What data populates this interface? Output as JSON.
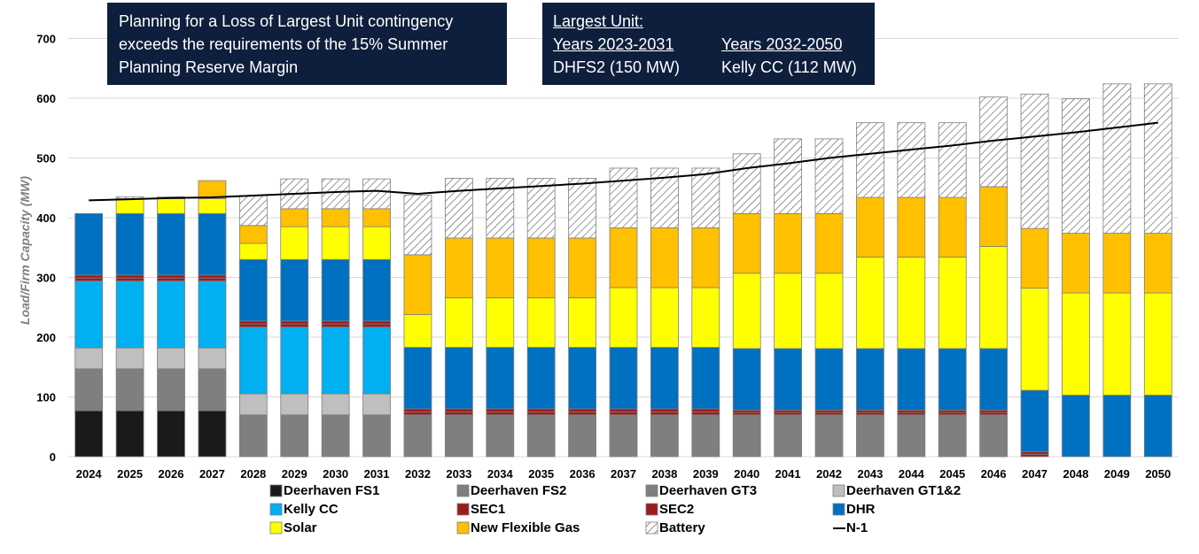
{
  "notes": {
    "left_lines": [
      "Planning for a Loss of Largest Unit contingency",
      "exceeds the requirements of the 15% Summer",
      "Planning Reserve Margin"
    ],
    "right": {
      "title": "Largest Unit:",
      "col1_header": "Years 2023-2031",
      "col2_header": "Years 2032-2050",
      "col1_value": "DHFS2 (150 MW)",
      "col2_value": "Kelly CC (112 MW)"
    }
  },
  "chart_data": {
    "type": "bar",
    "stacked": true,
    "ylabel": "Load/Firm Capacity (MW)",
    "xlabel": "",
    "ylim": [
      0,
      700
    ],
    "yticks": [
      0,
      100,
      200,
      300,
      400,
      500,
      600,
      700
    ],
    "grid": true,
    "legend_position": "bottom",
    "categories": [
      "2024",
      "2025",
      "2026",
      "2027",
      "2028",
      "2029",
      "2030",
      "2031",
      "2032",
      "2033",
      "2034",
      "2035",
      "2036",
      "2037",
      "2038",
      "2039",
      "2040",
      "2041",
      "2042",
      "2043",
      "2044",
      "2045",
      "2046",
      "2047",
      "2048",
      "2049",
      "2050"
    ],
    "series": [
      {
        "name": "Deerhaven FS1",
        "color": "#1a1a1a",
        "pattern": "solid",
        "values": [
          77,
          77,
          77,
          77,
          0,
          0,
          0,
          0,
          0,
          0,
          0,
          0,
          0,
          0,
          0,
          0,
          0,
          0,
          0,
          0,
          0,
          0,
          0,
          0,
          0,
          0,
          0
        ]
      },
      {
        "name": "Deerhaven FS2",
        "color": "#7f7f7f",
        "pattern": "solid",
        "values": [
          70,
          70,
          70,
          70,
          70,
          70,
          70,
          70,
          0,
          0,
          0,
          0,
          0,
          0,
          0,
          0,
          0,
          0,
          0,
          0,
          0,
          0,
          0,
          0,
          0,
          0,
          0
        ]
      },
      {
        "name": "Deerhaven GT3",
        "color": "#7f7f7f",
        "pattern": "solid",
        "values": [
          0,
          0,
          0,
          0,
          0,
          0,
          0,
          0,
          70,
          70,
          70,
          70,
          70,
          70,
          70,
          70,
          70,
          70,
          70,
          70,
          70,
          70,
          70,
          0,
          0,
          0,
          0
        ]
      },
      {
        "name": "Deerhaven GT1&2",
        "color": "#bfbfbf",
        "pattern": "solid",
        "values": [
          35,
          35,
          35,
          35,
          35,
          35,
          35,
          35,
          0,
          0,
          0,
          0,
          0,
          0,
          0,
          0,
          0,
          0,
          0,
          0,
          0,
          0,
          0,
          0,
          0,
          0,
          0
        ]
      },
      {
        "name": "Kelly CC",
        "color": "#00b0f0",
        "pattern": "solid",
        "values": [
          112,
          112,
          112,
          112,
          112,
          112,
          112,
          112,
          0,
          0,
          0,
          0,
          0,
          0,
          0,
          0,
          0,
          0,
          0,
          0,
          0,
          0,
          0,
          0,
          0,
          0,
          0
        ]
      },
      {
        "name": "SEC1",
        "color": "#9b1c1c",
        "pattern": "solid",
        "values": [
          5,
          5,
          5,
          5,
          5,
          5,
          5,
          5,
          5,
          5,
          5,
          5,
          5,
          5,
          5,
          5,
          4,
          4,
          4,
          4,
          4,
          4,
          4,
          4,
          0,
          0,
          0
        ]
      },
      {
        "name": "SEC2",
        "color": "#9b1c1c",
        "pattern": "solid",
        "values": [
          5,
          5,
          5,
          5,
          5,
          5,
          5,
          5,
          5,
          5,
          5,
          5,
          5,
          5,
          5,
          5,
          4,
          4,
          4,
          4,
          4,
          4,
          4,
          4,
          0,
          0,
          0
        ]
      },
      {
        "name": "DHR",
        "color": "#0070c0",
        "pattern": "solid",
        "values": [
          103,
          103,
          103,
          103,
          103,
          103,
          103,
          103,
          103,
          103,
          103,
          103,
          103,
          103,
          103,
          103,
          103,
          103,
          103,
          103,
          103,
          103,
          103,
          103,
          103,
          103,
          103
        ]
      },
      {
        "name": "Solar",
        "color": "#ffff00",
        "pattern": "solid",
        "values": [
          0,
          25,
          25,
          25,
          27,
          55,
          55,
          55,
          55,
          83,
          83,
          83,
          83,
          100,
          100,
          100,
          126,
          126,
          126,
          153,
          153,
          153,
          171,
          171,
          171,
          171,
          171
        ]
      },
      {
        "name": "New Flexible Gas",
        "color": "#ffc000",
        "pattern": "solid",
        "values": [
          0,
          0,
          0,
          30,
          30,
          30,
          30,
          30,
          100,
          100,
          100,
          100,
          100,
          100,
          100,
          100,
          100,
          100,
          100,
          100,
          100,
          100,
          100,
          100,
          100,
          100,
          100
        ]
      },
      {
        "name": "Battery",
        "color": "#ffffff",
        "pattern": "hatch",
        "values": [
          0,
          3,
          3,
          0,
          50,
          50,
          50,
          50,
          100,
          100,
          100,
          100,
          100,
          100,
          100,
          100,
          100,
          125,
          125,
          125,
          125,
          125,
          150,
          225,
          225,
          250,
          250
        ]
      }
    ],
    "line_series": {
      "name": "N-1",
      "color": "#000000",
      "values": [
        429,
        431,
        433,
        434,
        437,
        440,
        443,
        445,
        440,
        445,
        449,
        453,
        457,
        462,
        467,
        473,
        483,
        491,
        500,
        507,
        514,
        521,
        529,
        536,
        543,
        551,
        559
      ]
    }
  }
}
